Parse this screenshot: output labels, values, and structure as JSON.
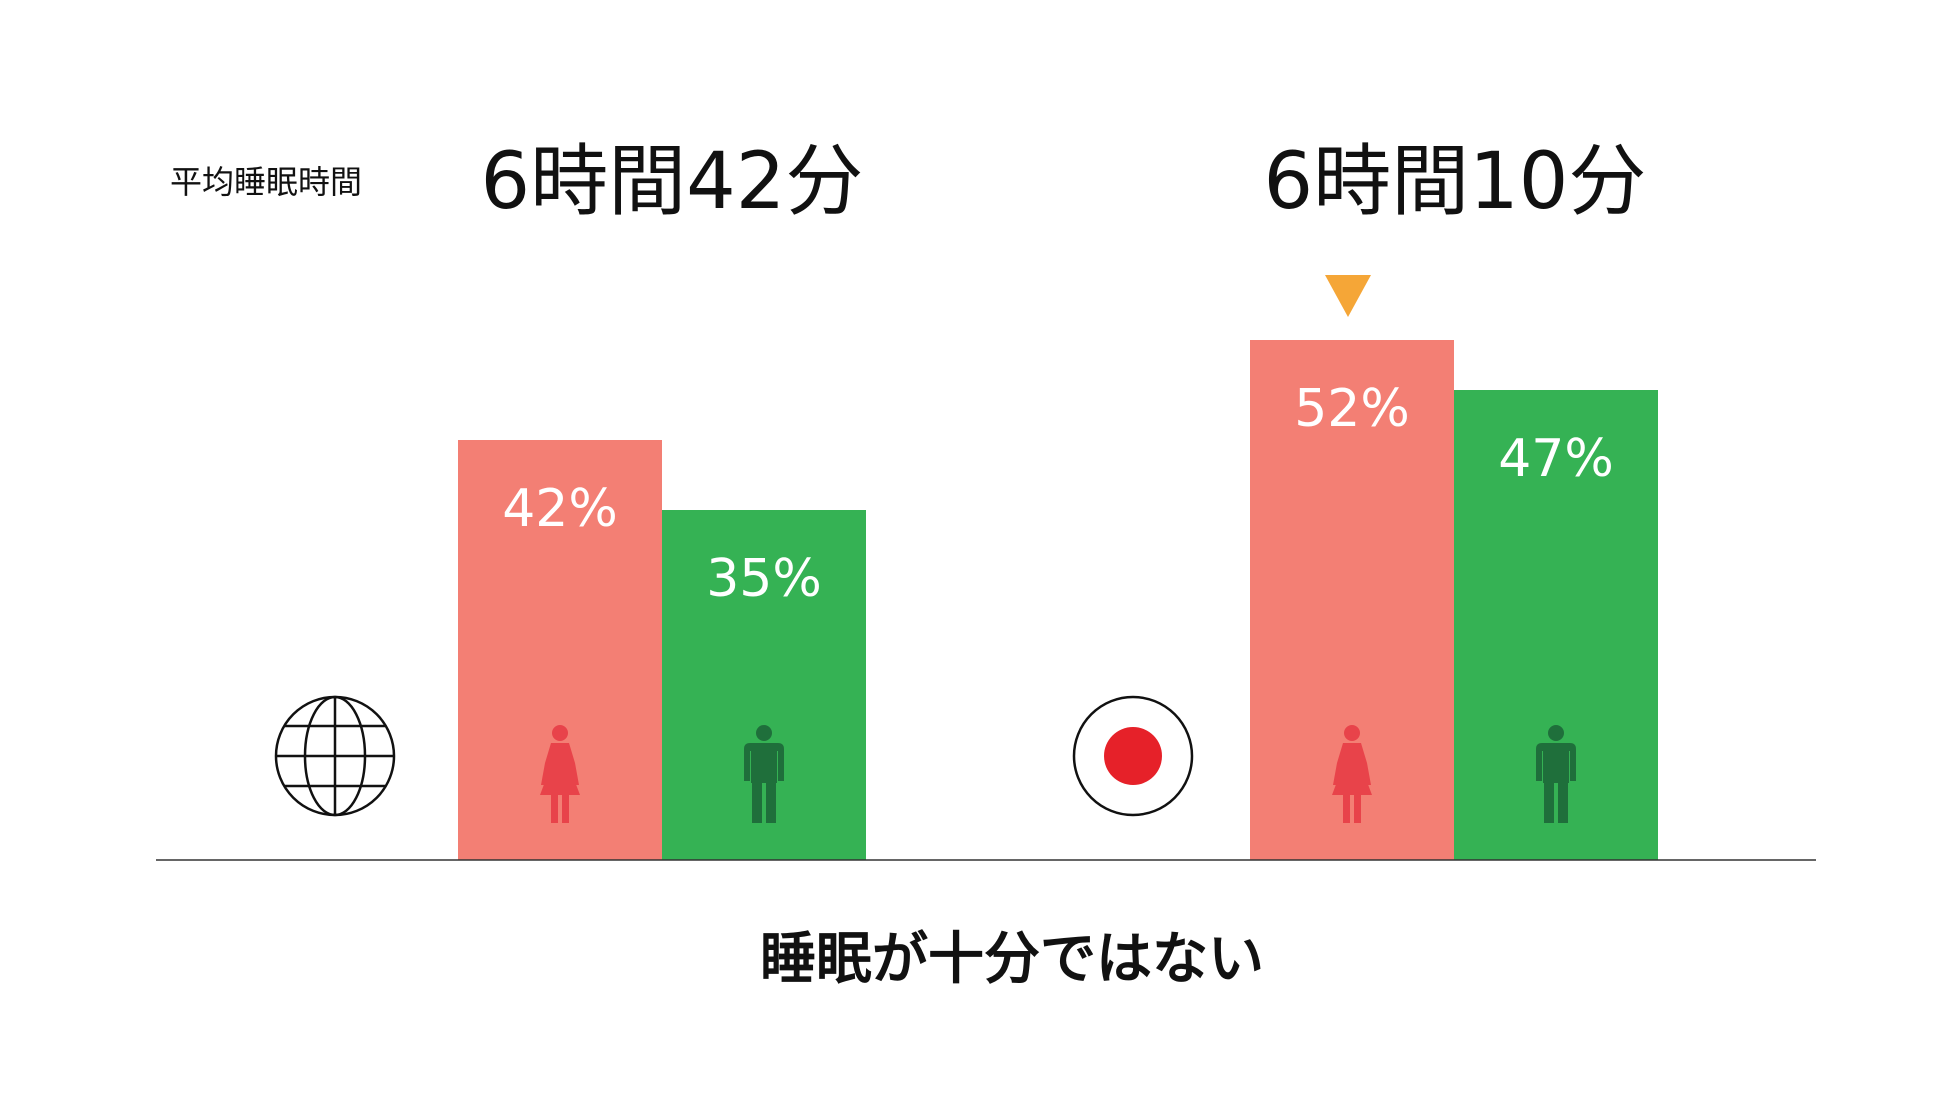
{
  "chart_data": {
    "type": "bar",
    "row_label": "平均睡眠時間",
    "footer": "睡眠が十分ではない",
    "groups": [
      {
        "icon": "globe-icon",
        "avg_sleep": "6時間42分",
        "bars": [
          {
            "series": "female-icon",
            "value": 42,
            "label": "42%"
          },
          {
            "series": "male-icon",
            "value": 35,
            "label": "35%"
          }
        ]
      },
      {
        "icon": "japan-flag-icon",
        "avg_sleep": "6時間10分",
        "marker": "triangle-down-icon",
        "bars": [
          {
            "series": "female-icon",
            "value": 52,
            "label": "52%"
          },
          {
            "series": "male-icon",
            "value": 47,
            "label": "47%"
          }
        ]
      }
    ],
    "ylim": [
      0,
      60
    ],
    "grid": false,
    "legend": "none"
  },
  "colors": {
    "female_bar": "#f37f74",
    "male_bar": "#35b254",
    "female_icon": "#e8434a",
    "male_icon": "#1f6f3b",
    "marker": "#f5a637",
    "flag_red": "#e62129",
    "text": "#111111",
    "axis": "#333333"
  }
}
